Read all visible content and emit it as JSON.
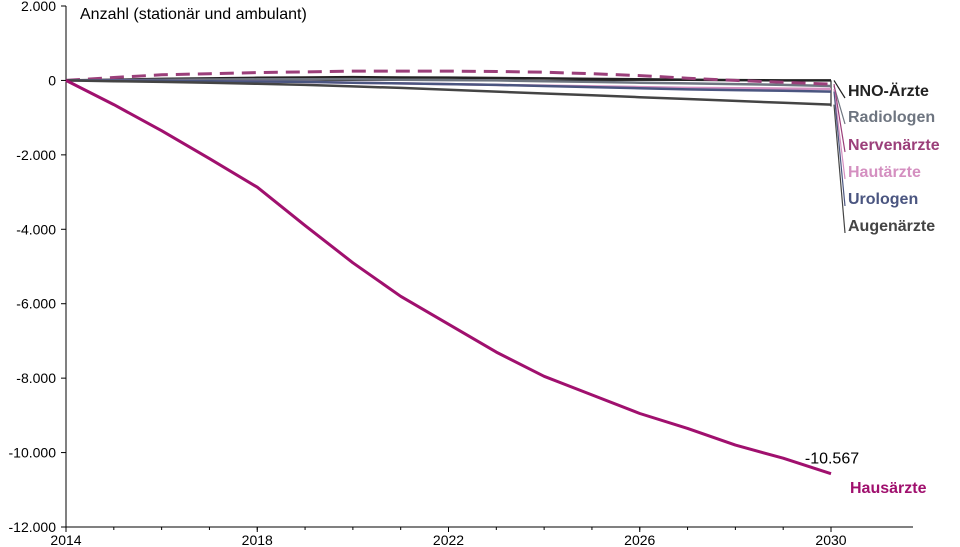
{
  "chart_data": {
    "type": "line",
    "title": "",
    "xlabel": "",
    "ylabel": "Anzahl (stationär und ambulant)",
    "xlim": [
      2014,
      2030
    ],
    "ylim": [
      -12000,
      2000
    ],
    "x_ticks": [
      2014,
      2018,
      2022,
      2026,
      2030
    ],
    "x_tick_labels": [
      "2014",
      "2018",
      "2022",
      "2026",
      "2030"
    ],
    "y_ticks": [
      2000,
      0,
      -2000,
      -4000,
      -6000,
      -8000,
      -10000,
      -12000
    ],
    "y_tick_labels": [
      "2.000",
      "0",
      "-2.000",
      "-4.000",
      "-6.000",
      "-8.000",
      "-10.000",
      "-12.000"
    ],
    "grid": false,
    "legend": "right",
    "x": [
      2014,
      2015,
      2016,
      2017,
      2018,
      2019,
      2020,
      2021,
      2022,
      2023,
      2024,
      2025,
      2026,
      2027,
      2028,
      2029,
      2030
    ],
    "series": [
      {
        "name": "HNO-Ärzte",
        "color": "#222222",
        "dashed": false,
        "values": [
          0,
          20,
          40,
          55,
          70,
          80,
          90,
          80,
          75,
          65,
          55,
          40,
          30,
          20,
          10,
          0,
          0
        ]
      },
      {
        "name": "Radiologen",
        "color": "#6e7580",
        "dashed": false,
        "values": [
          0,
          10,
          20,
          25,
          30,
          30,
          35,
          20,
          10,
          0,
          -20,
          -40,
          -60,
          -80,
          -100,
          -120,
          -150
        ]
      },
      {
        "name": "Nervenärzte",
        "color": "#9b3f7a",
        "dashed": true,
        "values": [
          0,
          80,
          150,
          180,
          210,
          230,
          250,
          250,
          250,
          240,
          220,
          180,
          130,
          60,
          0,
          -50,
          -100
        ]
      },
      {
        "name": "Hautärzte",
        "color": "#d48fc0",
        "dashed": false,
        "values": [
          0,
          0,
          -10,
          -20,
          -30,
          -40,
          -60,
          -80,
          -100,
          -120,
          -140,
          -160,
          -180,
          -200,
          -210,
          -220,
          -230
        ]
      },
      {
        "name": "Urologen",
        "color": "#4a5580",
        "dashed": false,
        "values": [
          0,
          0,
          -10,
          -20,
          -30,
          -40,
          -60,
          -80,
          -100,
          -120,
          -150,
          -180,
          -210,
          -240,
          -260,
          -280,
          -300
        ]
      },
      {
        "name": "Augenärzte",
        "color": "#444444",
        "dashed": false,
        "values": [
          0,
          -20,
          -40,
          -60,
          -90,
          -120,
          -160,
          -200,
          -250,
          -300,
          -350,
          -400,
          -450,
          -500,
          -550,
          -600,
          -650
        ]
      },
      {
        "name": "Hausärzte",
        "color": "#a0106e",
        "dashed": false,
        "values": [
          0,
          -650,
          -1350,
          -2100,
          -2870,
          -3900,
          -4900,
          -5800,
          -6550,
          -7300,
          -7950,
          -8450,
          -8950,
          -9350,
          -9800,
          -10150,
          -10567
        ]
      }
    ],
    "annotations": [
      {
        "text": "-10.567",
        "x": 2030,
        "y": -10567
      }
    ]
  }
}
